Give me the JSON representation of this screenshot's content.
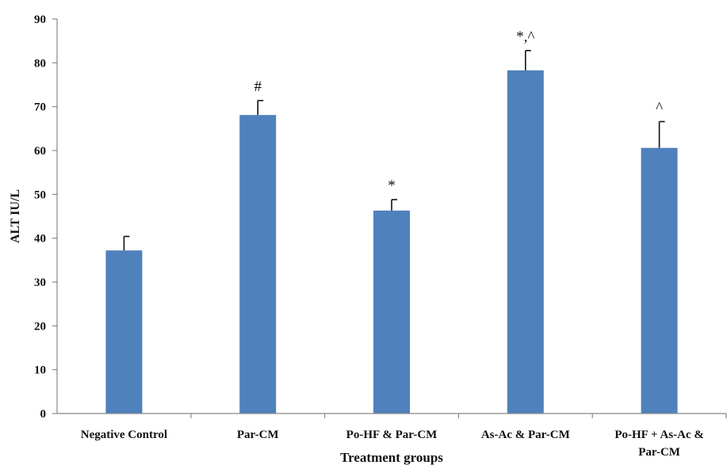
{
  "chart_data": {
    "type": "bar",
    "xlabel": "Treatment groups",
    "ylabel": "ALT IU/L",
    "ylim": [
      0,
      90
    ],
    "yticks": [
      0,
      10,
      20,
      30,
      40,
      50,
      60,
      70,
      80,
      90
    ],
    "grid": false,
    "bar_color": "#4f81bd",
    "categories": [
      [
        "Negative Control"
      ],
      [
        "Par-CM"
      ],
      [
        "Po-HF & Par-CM"
      ],
      [
        "As-Ac & Par-CM"
      ],
      [
        "Po-HF + As-Ac &",
        "Par-CM"
      ]
    ],
    "values": [
      37.2,
      68.1,
      46.3,
      78.3,
      60.6
    ],
    "errors": [
      3.2,
      3.3,
      2.5,
      4.5,
      6.0
    ],
    "annotations": [
      "",
      "#",
      "*",
      "*,^",
      "^"
    ]
  }
}
